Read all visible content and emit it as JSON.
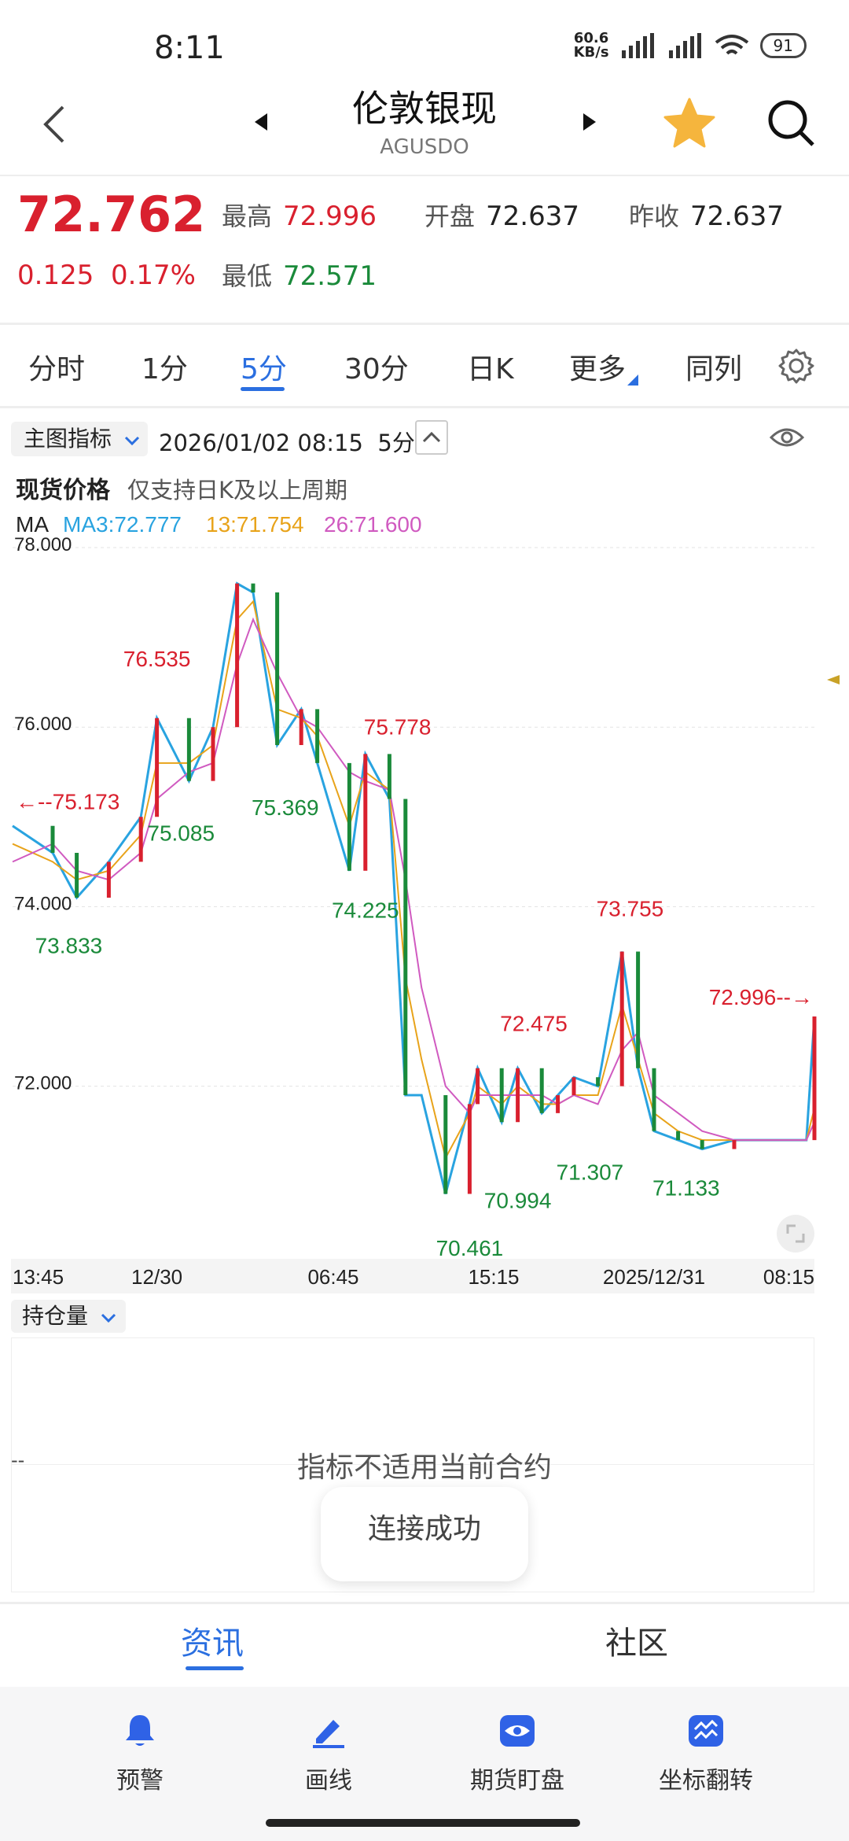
{
  "status_bar": {
    "time": "8:11",
    "net_speed_top": "60.6",
    "net_speed_bottom": "KB/s",
    "battery": "91"
  },
  "header": {
    "title": "伦敦银现",
    "subtitle": "AGUSDO"
  },
  "quote": {
    "price": "72.762",
    "change": "0.125",
    "change_pct": "0.17%",
    "high_label": "最高",
    "high": "72.996",
    "open_label": "开盘",
    "open": "72.637",
    "prev_close_label": "昨收",
    "prev_close": "72.637",
    "low_label": "最低",
    "low": "72.571"
  },
  "tabs": [
    "分时",
    "1分",
    "5分",
    "30分",
    "日K",
    "更多",
    "同列"
  ],
  "active_tab": "5分",
  "chart_header": {
    "indicator_label": "主图指标",
    "datetime": "2026/01/02 08:15",
    "period": "5分",
    "spot_label": "现货价格",
    "spot_note": "仅支持日K及以上周期",
    "ma_label": "MA",
    "ma3": "MA3:72.777",
    "ma13": "13:71.754",
    "ma26": "26:71.600"
  },
  "colors": {
    "up": "#d9202e",
    "down": "#1a8a3a",
    "accent": "#2b6fe0",
    "ma3": "#29a3e0",
    "ma13": "#e8a31a",
    "ma26": "#d05ac0"
  },
  "chart_data": {
    "type": "line",
    "title": "",
    "ylim": [
      70.2,
      78.0
    ],
    "yticks": [
      "78.000",
      "76.000",
      "74.000",
      "72.000"
    ],
    "ytick_values": [
      78.0,
      76.0,
      74.0,
      72.0
    ],
    "xticks": [
      "13:45",
      "12/30",
      "06:45",
      "15:15",
      "2025/12/31",
      "08:15"
    ],
    "xtick_positions": [
      0,
      0.18,
      0.4,
      0.6,
      0.8,
      1.0
    ],
    "series": [
      {
        "name": "MA3",
        "x": [
          0,
          0.05,
          0.08,
          0.12,
          0.16,
          0.18,
          0.22,
          0.25,
          0.28,
          0.3,
          0.33,
          0.36,
          0.38,
          0.42,
          0.44,
          0.47,
          0.49,
          0.51,
          0.54,
          0.57,
          0.58,
          0.61,
          0.63,
          0.66,
          0.68,
          0.7,
          0.73,
          0.76,
          0.78,
          0.8,
          0.83,
          0.86,
          0.9,
          0.95,
          0.99,
          1.0
        ],
        "y": [
          74.9,
          74.6,
          74.1,
          74.5,
          75.0,
          76.1,
          75.4,
          76.0,
          77.6,
          77.5,
          75.8,
          76.2,
          75.6,
          74.4,
          75.7,
          75.2,
          71.9,
          71.9,
          70.8,
          71.8,
          72.2,
          71.6,
          72.2,
          71.7,
          71.9,
          72.1,
          72.0,
          73.5,
          72.2,
          71.5,
          71.4,
          71.3,
          71.4,
          71.4,
          71.4,
          72.777
        ]
      },
      {
        "name": "13",
        "x": [
          0,
          0.05,
          0.08,
          0.12,
          0.16,
          0.18,
          0.22,
          0.25,
          0.28,
          0.3,
          0.33,
          0.36,
          0.38,
          0.42,
          0.44,
          0.47,
          0.49,
          0.51,
          0.54,
          0.57,
          0.58,
          0.61,
          0.63,
          0.66,
          0.68,
          0.7,
          0.73,
          0.76,
          0.78,
          0.8,
          0.83,
          0.86,
          0.9,
          0.95,
          0.99,
          1.0
        ],
        "y": [
          74.7,
          74.5,
          74.3,
          74.4,
          74.8,
          75.6,
          75.6,
          75.8,
          77.2,
          77.4,
          76.2,
          76.1,
          75.9,
          74.9,
          75.5,
          75.3,
          73.2,
          72.3,
          71.2,
          71.7,
          72.0,
          71.8,
          72.0,
          71.8,
          71.8,
          71.9,
          71.9,
          72.9,
          72.3,
          71.7,
          71.5,
          71.4,
          71.4,
          71.4,
          71.4,
          71.754
        ]
      },
      {
        "name": "26",
        "x": [
          0,
          0.05,
          0.08,
          0.12,
          0.16,
          0.18,
          0.22,
          0.25,
          0.28,
          0.3,
          0.33,
          0.36,
          0.38,
          0.42,
          0.44,
          0.47,
          0.49,
          0.51,
          0.54,
          0.57,
          0.58,
          0.61,
          0.63,
          0.66,
          0.68,
          0.7,
          0.73,
          0.76,
          0.78,
          0.8,
          0.83,
          0.86,
          0.9,
          0.95,
          0.99,
          1.0
        ],
        "y": [
          74.5,
          74.7,
          74.4,
          74.3,
          74.6,
          75.2,
          75.5,
          75.6,
          76.7,
          77.2,
          76.6,
          76.1,
          76.0,
          75.5,
          75.4,
          75.3,
          74.3,
          73.1,
          72.0,
          71.7,
          71.9,
          71.9,
          71.9,
          71.9,
          71.8,
          71.9,
          71.8,
          72.4,
          72.6,
          71.9,
          71.7,
          71.5,
          71.4,
          71.4,
          71.4,
          71.6
        ]
      }
    ],
    "annotations": [
      {
        "text": "76.535",
        "x": 0.18,
        "y": 76.535,
        "kind": "high"
      },
      {
        "text": "75.085",
        "x": 0.21,
        "y": 75.085,
        "kind": "low"
      },
      {
        "text": "75.369",
        "x": 0.34,
        "y": 75.369,
        "kind": "low"
      },
      {
        "text": "75.778",
        "x": 0.48,
        "y": 75.778,
        "kind": "high"
      },
      {
        "text": "74.225",
        "x": 0.44,
        "y": 74.225,
        "kind": "low"
      },
      {
        "text": "73.833",
        "x": 0.07,
        "y": 73.833,
        "kind": "low"
      },
      {
        "text": "72.475",
        "x": 0.65,
        "y": 72.475,
        "kind": "high"
      },
      {
        "text": "73.755",
        "x": 0.77,
        "y": 73.755,
        "kind": "high"
      },
      {
        "text": "70.994",
        "x": 0.63,
        "y": 70.994,
        "kind": "low"
      },
      {
        "text": "71.307",
        "x": 0.72,
        "y": 71.307,
        "kind": "low"
      },
      {
        "text": "71.133",
        "x": 0.84,
        "y": 71.133,
        "kind": "low"
      },
      {
        "text": "70.461",
        "x": 0.57,
        "y": 70.461,
        "kind": "low"
      },
      {
        "text": "75.173",
        "x": 0.0,
        "y": 75.173,
        "kind": "left-marker"
      },
      {
        "text": "72.996",
        "x": 0.96,
        "y": 72.996,
        "kind": "right-marker"
      }
    ]
  },
  "open_interest": {
    "label": "持仓量",
    "dash": "--",
    "message": "指标不适用当前合约"
  },
  "toast": "连接成功",
  "bottom_tabs": {
    "news": "资讯",
    "community": "社区"
  },
  "toolbar": [
    {
      "label": "预警",
      "icon": "bell-icon"
    },
    {
      "label": "画线",
      "icon": "draw-line-icon"
    },
    {
      "label": "期货盯盘",
      "icon": "eye-icon"
    },
    {
      "label": "坐标翻转",
      "icon": "flip-axis-icon"
    }
  ]
}
